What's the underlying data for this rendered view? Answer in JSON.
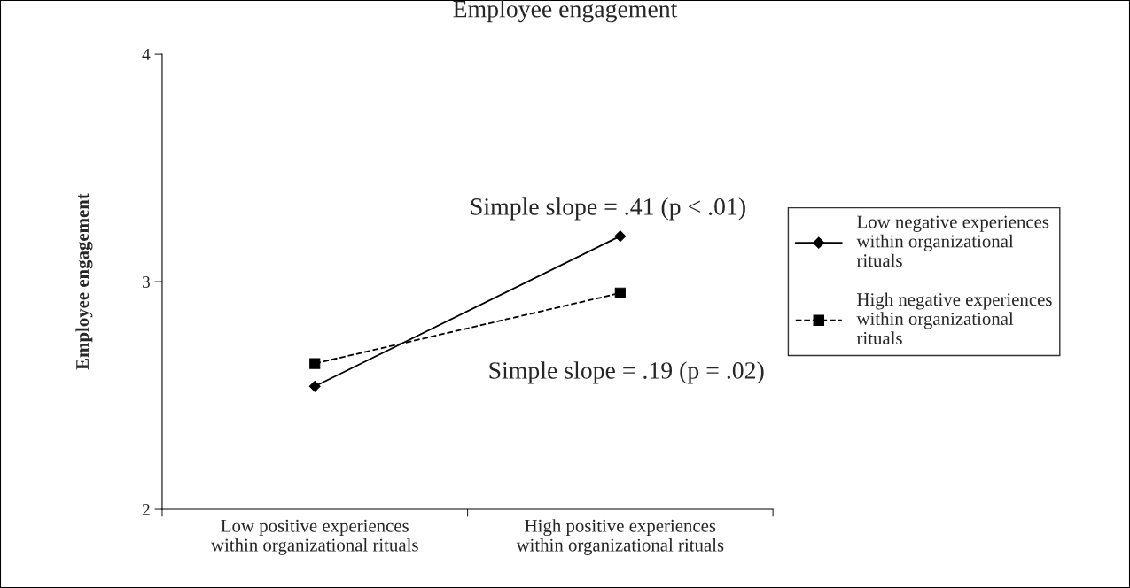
{
  "chart_data": {
    "type": "line",
    "title": "Employee engagement",
    "ylabel": "Employee engagement",
    "categories": [
      "Low positive experiences\nwithin organizational rituals",
      "High positive experiences\nwithin organizational rituals"
    ],
    "series": [
      {
        "name": "Low negative experiences\nwithin organizational\nrituals",
        "color": "#000000",
        "values": [
          2.54,
          3.2
        ],
        "marker": "diamond",
        "line_style": "solid"
      },
      {
        "name": "High negative experiences\nwithin organizational\nrituals",
        "color": "#000000",
        "values": [
          2.64,
          2.95
        ],
        "marker": "square",
        "line_style": "dashed"
      }
    ],
    "ylim": [
      2,
      4
    ],
    "yticks": [
      2,
      3,
      4
    ],
    "grid": false,
    "legend": "right",
    "annotations": [
      "Simple slope = .41 (p < .01)",
      "Simple slope = .19 (p = .02)"
    ]
  }
}
